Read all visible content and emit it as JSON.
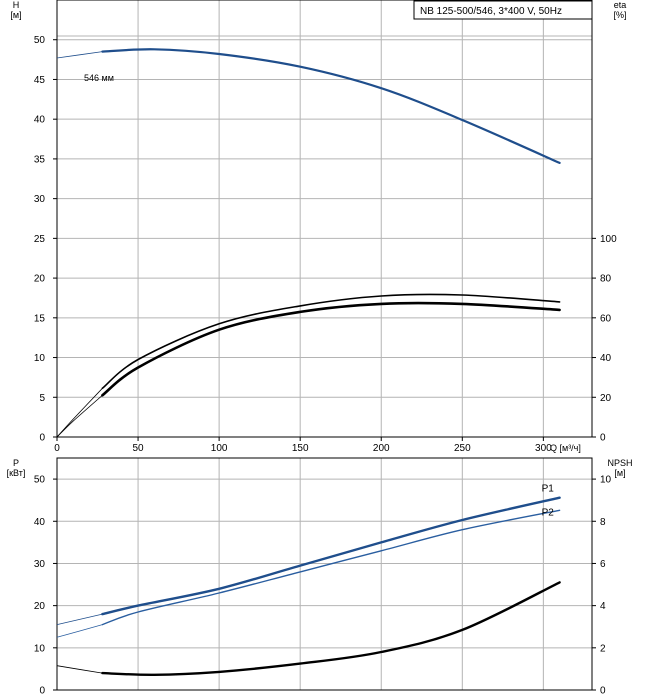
{
  "title_box": "NB 125-500/546, 3*400 V, 50Hz",
  "curve_label": "546 мм",
  "chart_data": [
    {
      "type": "line",
      "x_label": "Q [м³/ч]",
      "x_ticks": [
        "0",
        "50",
        "100",
        "150",
        "200",
        "250",
        "300"
      ],
      "xlim": [
        0,
        330
      ],
      "y_left_label": [
        "H",
        "[м]"
      ],
      "y_left_ticks": [
        "0",
        "5",
        "10",
        "15",
        "20",
        "25",
        "30",
        "35",
        "40",
        "45",
        "50"
      ],
      "ylim_left": [
        0,
        55
      ],
      "y_right_label": [
        "eta",
        "[%]"
      ],
      "y_right_ticks": [
        "0",
        "20",
        "40",
        "60",
        "80",
        "100"
      ],
      "ylim_right": [
        0,
        220
      ],
      "grid": true,
      "series": [
        {
          "name": "546 мм",
          "axis": "left",
          "color": "#1f4e8c",
          "extension": [
            [
              0,
              47.7
            ],
            [
              28,
              48.5
            ]
          ],
          "x": [
            28,
            60,
            100,
            150,
            200,
            250,
            310
          ],
          "y": [
            48.5,
            48.8,
            48.2,
            46.6,
            43.9,
            39.9,
            34.5
          ]
        },
        {
          "axis": "right",
          "color": "#000000",
          "width": 2.6,
          "extension": [
            [
              0,
              0
            ],
            [
              10,
              8
            ],
            [
              28,
              21
            ]
          ],
          "x": [
            28,
            50,
            100,
            150,
            200,
            250,
            310
          ],
          "y": [
            21,
            35,
            54,
            63,
            67,
            67,
            64
          ]
        },
        {
          "axis": "right",
          "color": "#000000",
          "width": 1.6,
          "extension": [
            [
              0,
              0
            ],
            [
              10,
              9
            ],
            [
              28,
              24.5
            ]
          ],
          "x": [
            28,
            50,
            100,
            150,
            200,
            250,
            310
          ],
          "y": [
            24.5,
            39,
            57,
            66,
            71,
            71.5,
            68
          ]
        }
      ]
    },
    {
      "type": "line",
      "y_left_label": [
        "P",
        "[кВт]"
      ],
      "y_left_ticks": [
        "0",
        "10",
        "20",
        "30",
        "40",
        "50"
      ],
      "ylim_left": [
        0,
        55
      ],
      "y_right_label": [
        "NPSH",
        "[м]"
      ],
      "y_right_ticks": [
        "0",
        "2",
        "4",
        "6",
        "8",
        "10"
      ],
      "ylim_right": [
        0,
        11
      ],
      "xlim": [
        0,
        330
      ],
      "grid": true,
      "series": [
        {
          "name": "P1",
          "axis": "left",
          "color": "#1f4e8c",
          "width": 2.4,
          "extension": [
            [
              0,
              15.5
            ],
            [
              28,
              18
            ]
          ],
          "x": [
            28,
            50,
            100,
            150,
            200,
            250,
            310
          ],
          "y": [
            18,
            20,
            24,
            29.5,
            35,
            40.3,
            45.6
          ]
        },
        {
          "name": "P2",
          "axis": "left",
          "color": "#2a5ea0",
          "width": 1.4,
          "extension": [
            [
              0,
              12.5
            ],
            [
              28,
              15.5
            ]
          ],
          "x": [
            28,
            50,
            100,
            150,
            200,
            250,
            310
          ],
          "y": [
            15.5,
            18.5,
            23,
            28,
            33,
            38,
            42.6
          ]
        },
        {
          "axis": "right",
          "color": "#000000",
          "width": 2.4,
          "extension": [
            [
              0,
              1.15
            ],
            [
              28,
              0.8
            ]
          ],
          "x": [
            28,
            60,
            100,
            150,
            200,
            250,
            310
          ],
          "y": [
            0.8,
            0.72,
            0.86,
            1.25,
            1.8,
            2.85,
            5.1
          ]
        }
      ]
    }
  ]
}
